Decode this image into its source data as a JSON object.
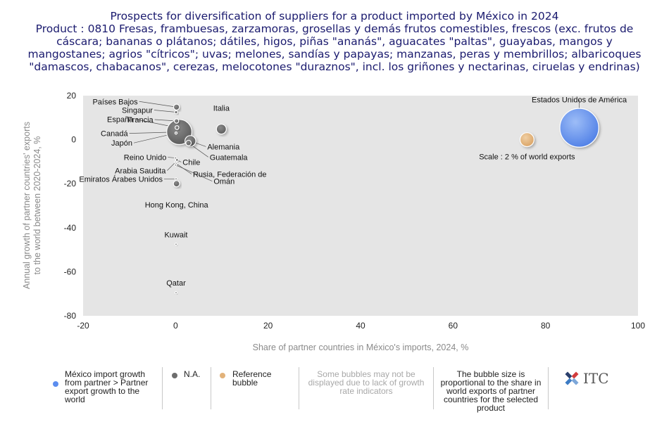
{
  "title": {
    "lines": [
      "Prospects for diversification of suppliers for a product imported by México in 2024",
      "Product : 0810 Fresas, frambuesas, zarzamoras, grosellas y demás frutos comestibles, frescos (exc. frutos de",
      "cáscara; bananas o plátanos; dátiles, higos, piñas \"ananás\", aguacates \"paltas\", guayabas, mangos y",
      "mangostanes; agrios \"cítricos\"; uvas; melones, sandías y papayas; manzanas, peras y membrillos; albaricoques",
      "\"damascos, chabacanos\", cerezas, melocotones \"duraznos\", incl. los griñones y nectarinas, ciruelas y endrinas)"
    ]
  },
  "chart_data": {
    "type": "scatter",
    "subtype": "bubble",
    "xlabel": "Share of partner countries in México's imports, 2024, %",
    "ylabel": "Annual growth of partner countries' exports to the world between 2020-2024, %",
    "xlim": [
      -20,
      100
    ],
    "ylim": [
      -80,
      20
    ],
    "xticks": [
      -20,
      0,
      20,
      40,
      60,
      80,
      100
    ],
    "yticks": [
      20,
      0,
      -20,
      -40,
      -60,
      -80
    ],
    "grid": false,
    "colors": {
      "growth": "#5b8def",
      "na": "#6d6d6d",
      "reference": "#e2b27a",
      "plot_bg": "#e5e5e5"
    },
    "points": [
      {
        "label": "Estados Unidos de América",
        "x": 87.3,
        "y": 5.4,
        "size": 15.5,
        "category": "growth"
      },
      {
        "label": "Italia",
        "x": 9.9,
        "y": 4.8,
        "size": 1.0,
        "category": "na"
      },
      {
        "label": "Países Bajos",
        "x": 0.2,
        "y": 14.8,
        "size": 0.35,
        "category": "na"
      },
      {
        "label": "Singapur",
        "x": 0.1,
        "y": 12.5,
        "size": 0.1,
        "category": "na"
      },
      {
        "label": "Francia",
        "x": 0.2,
        "y": 8.5,
        "size": 0.2,
        "category": "na"
      },
      {
        "label": "España",
        "x": 0.3,
        "y": 5.5,
        "size": 0.15,
        "category": "na"
      },
      {
        "label": "Canadá",
        "x": 0.8,
        "y": 3.5,
        "size": 6.5,
        "category": "na"
      },
      {
        "label": "Japón",
        "x": 0.1,
        "y": 3.0,
        "size": 0.05,
        "category": "na"
      },
      {
        "label": "Alemania",
        "x": 3.2,
        "y": -0.6,
        "size": 1.2,
        "category": "na"
      },
      {
        "label": "Guatemala",
        "x": 2.8,
        "y": -1.5,
        "size": 0.3,
        "category": "na"
      },
      {
        "label": "Reino Unido",
        "x": 0.0,
        "y": -8.3,
        "size": 0.03,
        "category": "na"
      },
      {
        "label": "Chile",
        "x": 0.3,
        "y": -9.2,
        "size": 0.08,
        "category": "na"
      },
      {
        "label": "Arabia Saudita",
        "x": 0.0,
        "y": -10.2,
        "size": 0.03,
        "category": "na"
      },
      {
        "label": "Rusia, Federación de",
        "x": 0.1,
        "y": -10.8,
        "size": 0.03,
        "category": "na"
      },
      {
        "label": "Omán",
        "x": 0.0,
        "y": -11.5,
        "size": 0.02,
        "category": "na"
      },
      {
        "label": "Emiratos Árabes Unidos",
        "x": 0.1,
        "y": -17.8,
        "size": 0.03,
        "category": "na"
      },
      {
        "label": "Hong Kong, China",
        "x": 0.2,
        "y": -20.0,
        "size": 0.4,
        "category": "na"
      },
      {
        "label": "Kuwait",
        "x": 0.1,
        "y": -47.5,
        "size": 0.01,
        "category": "na"
      },
      {
        "label": "Qatar",
        "x": 0.1,
        "y": -69.5,
        "size": 0.01,
        "category": "na"
      }
    ],
    "reference_bubble": {
      "label": "Scale : 2 % of world exports",
      "x": 76.0,
      "y": 0.0,
      "size": 2.0,
      "category": "reference"
    }
  },
  "legend": {
    "growth_label": "México import growth from partner > Partner export growth to the world",
    "na_label": "N.A.",
    "reference_label": "Reference bubble",
    "note": "Some bubbles may not be displayed due to lack of growth rate indicators",
    "size_note": "The bubble size is proportional to the share in world exports of partner countries for the selected product"
  },
  "logo": {
    "text": "ITC"
  }
}
